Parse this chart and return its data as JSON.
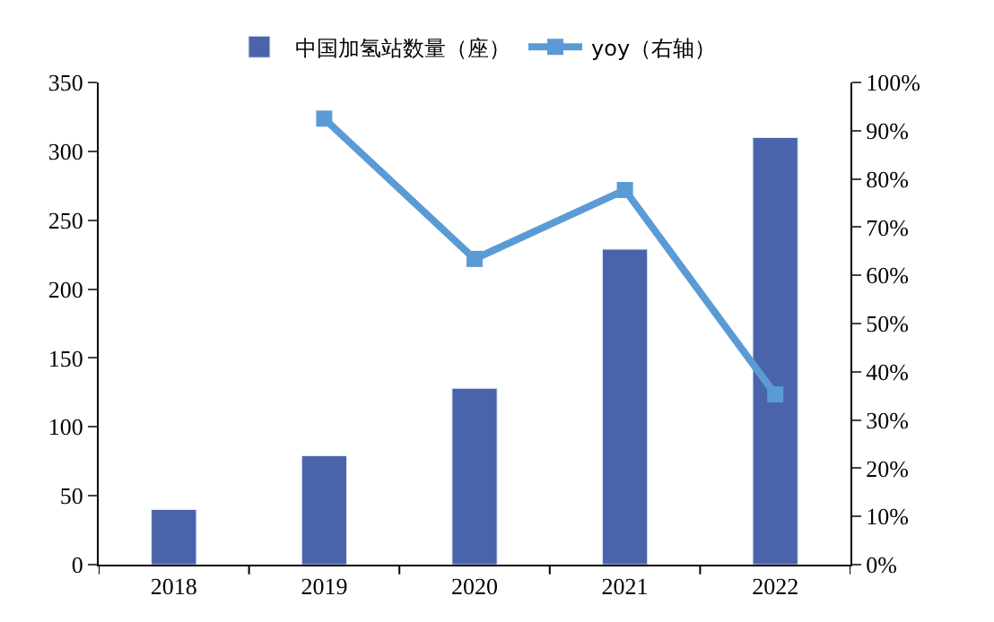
{
  "chart_data": {
    "type": "bar",
    "categories": [
      "2018",
      "2019",
      "2020",
      "2021",
      "2022"
    ],
    "series": [
      {
        "name": "中国加氢站数量（座）",
        "color": "#4a64ac",
        "values": [
          40,
          79,
          128,
          229,
          310
        ]
      },
      {
        "name": "yoy（右轴）",
        "type": "line",
        "axis": "y2",
        "color": "#5b9bd5",
        "marker": "square",
        "values": [
          null,
          92.5,
          63.4,
          77.7,
          35.3
        ]
      }
    ],
    "ylim": [
      0,
      350
    ],
    "yticks": [
      0,
      50,
      100,
      150,
      200,
      250,
      300,
      350
    ],
    "y2lim": [
      0,
      100
    ],
    "y2ticks": [
      {
        "value": 0,
        "label": "0%"
      },
      {
        "value": 10,
        "label": "10%"
      },
      {
        "value": 20,
        "label": "20%"
      },
      {
        "value": 30,
        "label": "30%"
      },
      {
        "value": 40,
        "label": "40%"
      },
      {
        "value": 50,
        "label": "50%"
      },
      {
        "value": 60,
        "label": "60%"
      },
      {
        "value": 70,
        "label": "70%"
      },
      {
        "value": 80,
        "label": "80%"
      },
      {
        "value": 90,
        "label": "90%"
      },
      {
        "value": 100,
        "label": "100%"
      }
    ],
    "legend": "top"
  }
}
